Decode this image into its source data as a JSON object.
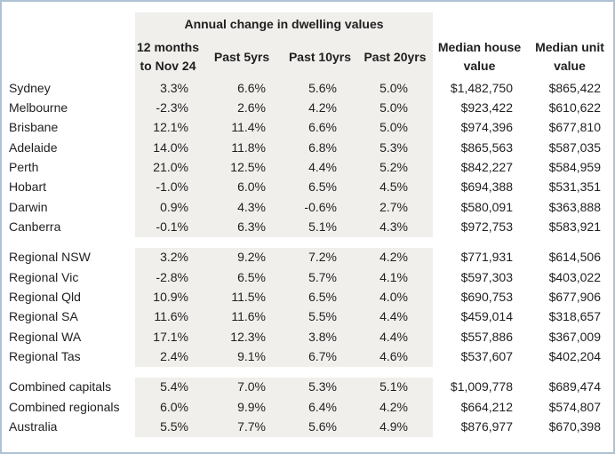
{
  "colors": {
    "frame_border": "#aec2d3",
    "shaded_background": "#f0efec",
    "text": "#1f1f1f",
    "page_background": "#ffffff"
  },
  "chart_data": {
    "type": "table",
    "title": "Annual change in dwelling values",
    "title_note": "title spans only the four percentage-change columns, which have a shaded background",
    "columns": [
      "12 months to Nov 24",
      "Past 5yrs",
      "Past 10yrs",
      "Past 20yrs",
      "Median house value",
      "Median unit value"
    ],
    "sections": [
      {
        "name": "capitals",
        "rows": [
          {
            "label": "Sydney",
            "cells": [
              "3.3%",
              "6.6%",
              "5.6%",
              "5.0%",
              "$1,482,750",
              "$865,422"
            ]
          },
          {
            "label": "Melbourne",
            "cells": [
              "-2.3%",
              "2.6%",
              "4.2%",
              "5.0%",
              "$923,422",
              "$610,622"
            ]
          },
          {
            "label": "Brisbane",
            "cells": [
              "12.1%",
              "11.4%",
              "6.6%",
              "5.0%",
              "$974,396",
              "$677,810"
            ]
          },
          {
            "label": "Adelaide",
            "cells": [
              "14.0%",
              "11.8%",
              "6.8%",
              "5.3%",
              "$865,563",
              "$587,035"
            ]
          },
          {
            "label": "Perth",
            "cells": [
              "21.0%",
              "12.5%",
              "4.4%",
              "5.2%",
              "$842,227",
              "$584,959"
            ]
          },
          {
            "label": "Hobart",
            "cells": [
              "-1.0%",
              "6.0%",
              "6.5%",
              "4.5%",
              "$694,388",
              "$531,351"
            ]
          },
          {
            "label": "Darwin",
            "cells": [
              "0.9%",
              "4.3%",
              "-0.6%",
              "2.7%",
              "$580,091",
              "$363,888"
            ]
          },
          {
            "label": "Canberra",
            "cells": [
              "-0.1%",
              "6.3%",
              "5.1%",
              "4.3%",
              "$972,753",
              "$583,921"
            ]
          }
        ]
      },
      {
        "name": "regionals",
        "rows": [
          {
            "label": "Regional NSW",
            "cells": [
              "3.2%",
              "9.2%",
              "7.2%",
              "4.2%",
              "$771,931",
              "$614,506"
            ]
          },
          {
            "label": "Regional Vic",
            "cells": [
              "-2.8%",
              "6.5%",
              "5.7%",
              "4.1%",
              "$597,303",
              "$403,022"
            ]
          },
          {
            "label": "Regional Qld",
            "cells": [
              "10.9%",
              "11.5%",
              "6.5%",
              "4.0%",
              "$690,753",
              "$677,906"
            ]
          },
          {
            "label": "Regional SA",
            "cells": [
              "11.6%",
              "11.6%",
              "5.5%",
              "4.4%",
              "$459,014",
              "$318,657"
            ]
          },
          {
            "label": "Regional WA",
            "cells": [
              "17.1%",
              "12.3%",
              "3.8%",
              "4.4%",
              "$557,886",
              "$367,009"
            ]
          },
          {
            "label": "Regional Tas",
            "cells": [
              "2.4%",
              "9.1%",
              "6.7%",
              "4.6%",
              "$537,607",
              "$402,204"
            ]
          }
        ]
      },
      {
        "name": "aggregates",
        "rows": [
          {
            "label": "Combined capitals",
            "cells": [
              "5.4%",
              "7.0%",
              "5.3%",
              "5.1%",
              "$1,009,778",
              "$689,474"
            ]
          },
          {
            "label": "Combined regionals",
            "cells": [
              "6.0%",
              "9.9%",
              "6.4%",
              "4.2%",
              "$664,212",
              "$574,807"
            ]
          },
          {
            "label": "Australia",
            "cells": [
              "5.5%",
              "7.7%",
              "5.6%",
              "4.9%",
              "$876,977",
              "$670,398"
            ]
          }
        ]
      }
    ]
  }
}
